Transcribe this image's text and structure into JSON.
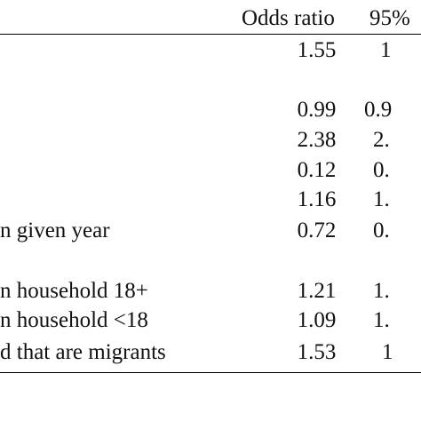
{
  "table": {
    "header": {
      "odds_ratio": "Odds ratio",
      "ci": "95%"
    },
    "rows": [
      {
        "label": "",
        "odds_ratio": "1.55",
        "ci": "1"
      },
      {
        "label": "",
        "odds_ratio": "0.99",
        "ci": "0.9"
      },
      {
        "label": "",
        "odds_ratio": "2.38",
        "ci": "2."
      },
      {
        "label": "",
        "odds_ratio": "0.12",
        "ci": "0."
      },
      {
        "label": "",
        "odds_ratio": "1.16",
        "ci": "1."
      },
      {
        "label": "n given year",
        "odds_ratio": "0.72",
        "ci": "0."
      },
      {
        "label": "n household 18+",
        "odds_ratio": "1.21",
        "ci": "1."
      },
      {
        "label": "n household <18",
        "odds_ratio": "1.09",
        "ci": "1."
      },
      {
        "label": "d that are migrants",
        "odds_ratio": "1.53",
        "ci": "1"
      }
    ]
  }
}
